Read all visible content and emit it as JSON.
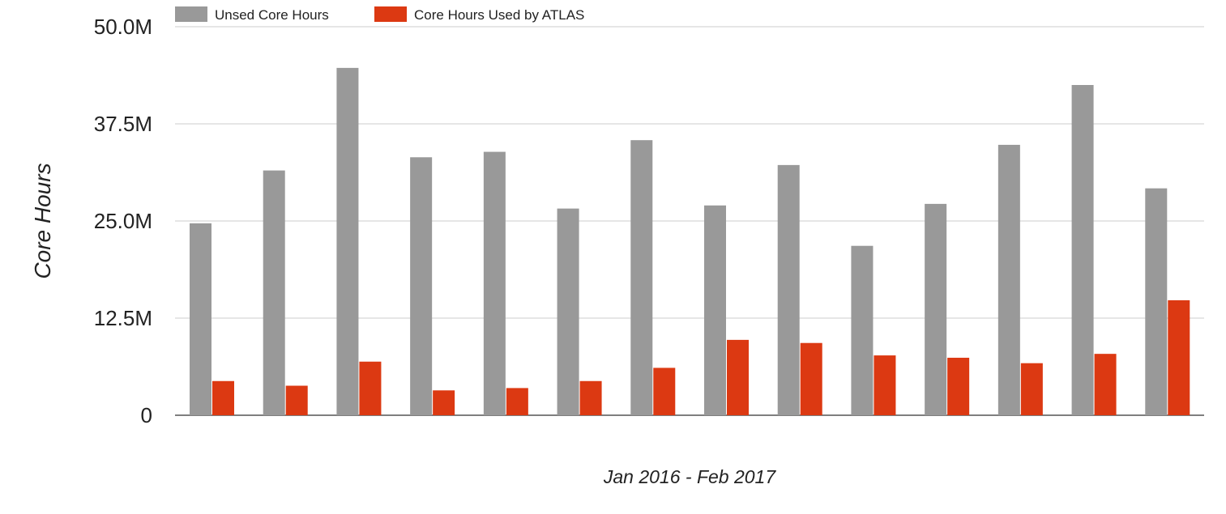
{
  "chart_data": {
    "type": "bar",
    "title": "",
    "xlabel": "Jan 2016 - Feb 2017",
    "ylabel": "Core Hours",
    "ylim": [
      0,
      50000000
    ],
    "yticks": [
      0,
      12500000,
      25000000,
      37500000,
      50000000
    ],
    "ytick_labels": [
      "0",
      "12.5M",
      "25.0M",
      "37.5M",
      "50.0M"
    ],
    "categories": [
      "",
      "",
      "",
      "",
      "",
      "",
      "",
      "",
      "",
      "",
      "",
      "",
      "",
      ""
    ],
    "grid": true,
    "legend_position": "top-left",
    "series": [
      {
        "name": "Unsed Core Hours",
        "color": "#999999",
        "values": [
          24700000,
          31500000,
          44700000,
          33200000,
          33900000,
          26600000,
          35400000,
          27000000,
          32200000,
          21800000,
          27200000,
          34800000,
          42500000,
          29200000
        ]
      },
      {
        "name": "Core Hours Used by ATLAS",
        "color": "#dc3912",
        "values": [
          4400000,
          3800000,
          6900000,
          3200000,
          3500000,
          4400000,
          6100000,
          9700000,
          9300000,
          7700000,
          7400000,
          6700000,
          7900000,
          14800000
        ]
      }
    ]
  }
}
